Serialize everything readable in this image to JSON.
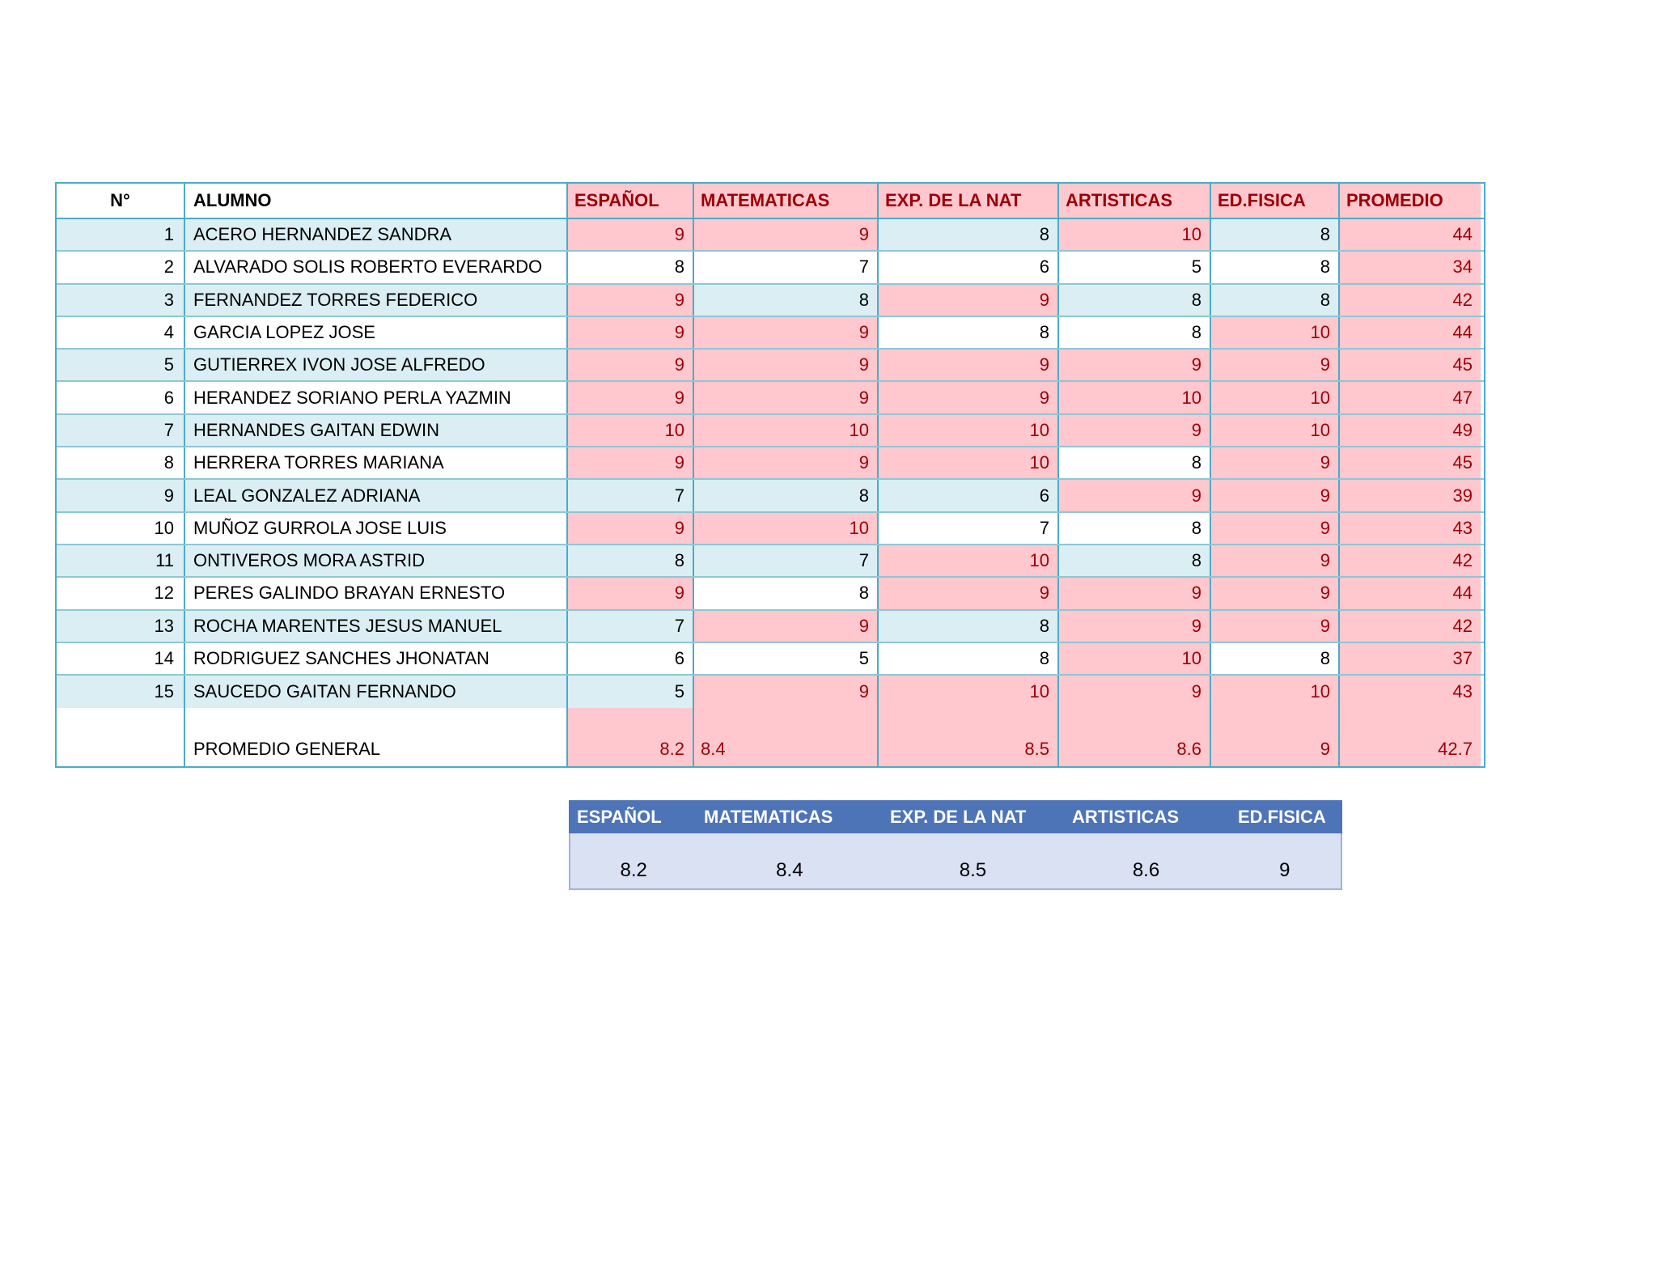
{
  "colors": {
    "highlight_pink": "#FFC7CE",
    "highlight_red_text": "#9C0006",
    "row_band_blue": "#DAEEF3",
    "table_border_teal": "#4BACC6",
    "summary_header_blue": "#4E74B8",
    "summary_value_bg": "#D9E1F2"
  },
  "grade_table": {
    "columns": [
      "N°",
      "ALUMNO",
      "ESPAÑOL",
      "MATEMATICAS",
      "EXP. DE LA NAT",
      "ARTISTICAS",
      "ED.FISICA",
      "PROMEDIO"
    ],
    "highlight_rule": "grade >= 9 shown red on pink; PROMEDIO column always red on pink",
    "rows": [
      {
        "num": "1",
        "name": "ACERO HERNANDEZ SANDRA",
        "grades": [
          9,
          9,
          8,
          10,
          8
        ],
        "promedio": "44"
      },
      {
        "num": "2",
        "name": "ALVARADO SOLIS ROBERTO EVERARDO",
        "grades": [
          8,
          7,
          6,
          5,
          8
        ],
        "promedio": "34"
      },
      {
        "num": "3",
        "name": "FERNANDEZ TORRES FEDERICO",
        "grades": [
          9,
          8,
          9,
          8,
          8
        ],
        "promedio": "42"
      },
      {
        "num": "4",
        "name": "GARCIA LOPEZ JOSE",
        "grades": [
          9,
          9,
          8,
          8,
          10
        ],
        "promedio": "44"
      },
      {
        "num": "5",
        "name": "GUTIERREX IVON JOSE ALFREDO",
        "grades": [
          9,
          9,
          9,
          9,
          9
        ],
        "promedio": "45"
      },
      {
        "num": "6",
        "name": "HERANDEZ SORIANO PERLA YAZMIN",
        "grades": [
          9,
          9,
          9,
          10,
          10
        ],
        "promedio": "47"
      },
      {
        "num": "7",
        "name": "HERNANDES GAITAN EDWIN",
        "grades": [
          10,
          10,
          10,
          9,
          10
        ],
        "promedio": "49"
      },
      {
        "num": "8",
        "name": "HERRERA TORRES MARIANA",
        "grades": [
          9,
          9,
          10,
          8,
          9
        ],
        "promedio": "45"
      },
      {
        "num": "9",
        "name": "LEAL GONZALEZ ADRIANA",
        "grades": [
          7,
          8,
          6,
          9,
          9
        ],
        "promedio": "39"
      },
      {
        "num": "10",
        "name": "MUÑOZ GURROLA JOSE LUIS",
        "grades": [
          9,
          10,
          7,
          8,
          9
        ],
        "promedio": "43"
      },
      {
        "num": "11",
        "name": "ONTIVEROS MORA ASTRID",
        "grades": [
          8,
          7,
          10,
          8,
          9
        ],
        "promedio": "42"
      },
      {
        "num": "12",
        "name": "PERES GALINDO BRAYAN ERNESTO",
        "grades": [
          9,
          8,
          9,
          9,
          9
        ],
        "promedio": "44"
      },
      {
        "num": "13",
        "name": "ROCHA MARENTES JESUS MANUEL",
        "grades": [
          7,
          9,
          8,
          9,
          9
        ],
        "promedio": "42"
      },
      {
        "num": "14",
        "name": "RODRIGUEZ SANCHES JHONATAN",
        "grades": [
          6,
          5,
          8,
          10,
          8
        ],
        "promedio": "37"
      },
      {
        "num": "15",
        "name": "SAUCEDO GAITAN FERNANDO",
        "grades": [
          5,
          9,
          10,
          9,
          10
        ],
        "promedio": "43"
      }
    ],
    "total_row": {
      "label": "PROMEDIO GENERAL",
      "values": [
        "8.2",
        "8.4",
        "8.5",
        "8.6",
        "9"
      ],
      "promedio": "42.7"
    }
  },
  "summary_table": {
    "columns": [
      "ESPAÑOL",
      "MATEMATICAS",
      "EXP. DE LA NAT",
      "ARTISTICAS",
      "ED.FISICA"
    ],
    "values": [
      "8.2",
      "8.4",
      "8.5",
      "8.6",
      "9"
    ]
  }
}
